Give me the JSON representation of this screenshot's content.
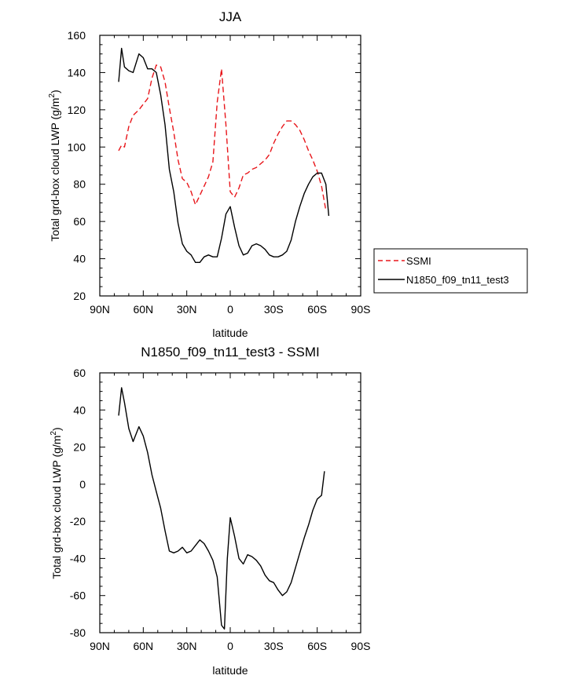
{
  "chart_data": [
    {
      "type": "line",
      "title": "JJA",
      "xlabel": "latitude",
      "ylabel": "Total grd-box cloud LWP (g/m",
      "ylabel_sup": "2",
      "ylabel_close": ")",
      "xlim": [
        90,
        -90
      ],
      "ylim": [
        20,
        160
      ],
      "xticks": [
        {
          "value": 90,
          "label": "90N"
        },
        {
          "value": 60,
          "label": "60N"
        },
        {
          "value": 30,
          "label": "30N"
        },
        {
          "value": 0,
          "label": "0"
        },
        {
          "value": -30,
          "label": "30S"
        },
        {
          "value": -60,
          "label": "60S"
        },
        {
          "value": -90,
          "label": "90S"
        }
      ],
      "yticks": [
        {
          "value": 20,
          "label": "20"
        },
        {
          "value": 40,
          "label": "40"
        },
        {
          "value": 60,
          "label": "60"
        },
        {
          "value": 80,
          "label": "80"
        },
        {
          "value": 100,
          "label": "100"
        },
        {
          "value": 120,
          "label": "120"
        },
        {
          "value": 140,
          "label": "140"
        },
        {
          "value": 160,
          "label": "160"
        }
      ],
      "legend": [
        {
          "name": "SSMI",
          "color": "#e8161b",
          "dash": true
        },
        {
          "name": "N1850_f09_tn11_test3",
          "color": "#000000",
          "dash": false
        }
      ],
      "series": [
        {
          "name": "SSMI",
          "color": "#e8161b",
          "dash": true,
          "x": [
            77,
            75,
            73,
            70,
            67,
            63,
            60,
            57,
            54,
            51,
            48,
            45,
            42,
            39,
            36,
            33,
            30,
            27,
            24,
            21,
            18,
            15,
            12,
            9,
            6,
            3,
            0,
            -3,
            -6,
            -9,
            -12,
            -15,
            -18,
            -21,
            -24,
            -27,
            -30,
            -33,
            -36,
            -39,
            -42,
            -45,
            -48,
            -51,
            -54,
            -57,
            -60,
            -63,
            -66
          ],
          "y": [
            98,
            101,
            100,
            111,
            117,
            120,
            123,
            126,
            137,
            144,
            143,
            135,
            121,
            108,
            93,
            83,
            81,
            76,
            69,
            74,
            79,
            84,
            92,
            124,
            142,
            112,
            76,
            73,
            78,
            85,
            86,
            88,
            89,
            91,
            93,
            96,
            102,
            107,
            111,
            114,
            114,
            112,
            109,
            104,
            98,
            93,
            87,
            79,
            66
          ]
        },
        {
          "name": "N1850_f09_tn11_test3",
          "color": "#000000",
          "dash": false,
          "x": [
            77,
            75,
            73,
            70,
            67,
            63,
            60,
            57,
            54,
            51,
            48,
            45,
            42,
            39,
            36,
            33,
            30,
            27,
            24,
            21,
            18,
            15,
            12,
            9,
            6,
            3,
            0,
            -3,
            -6,
            -9,
            -12,
            -15,
            -18,
            -21,
            -24,
            -27,
            -30,
            -33,
            -36,
            -39,
            -42,
            -45,
            -48,
            -51,
            -54,
            -57,
            -60,
            -63,
            -66,
            -68
          ],
          "y": [
            135,
            153,
            143,
            141,
            140,
            150,
            148,
            142,
            142,
            140,
            128,
            112,
            88,
            76,
            59,
            48,
            44,
            42,
            38,
            38,
            41,
            42,
            41,
            41,
            51,
            64,
            68,
            57,
            47,
            42,
            43,
            47,
            48,
            47,
            45,
            42,
            41,
            41,
            42,
            44,
            50,
            60,
            68,
            75,
            80,
            84,
            86,
            86,
            80,
            63
          ]
        }
      ]
    },
    {
      "type": "line",
      "title": "N1850_f09_tn11_test3 - SSMI",
      "xlabel": "latitude",
      "ylabel": "Total grd-box cloud LWP (g/m",
      "ylabel_sup": "2",
      "ylabel_close": ")",
      "xlim": [
        90,
        -90
      ],
      "ylim": [
        -80,
        60
      ],
      "xticks": [
        {
          "value": 90,
          "label": "90N"
        },
        {
          "value": 60,
          "label": "60N"
        },
        {
          "value": 30,
          "label": "30N"
        },
        {
          "value": 0,
          "label": "0"
        },
        {
          "value": -30,
          "label": "30S"
        },
        {
          "value": -60,
          "label": "60S"
        },
        {
          "value": -90,
          "label": "90S"
        }
      ],
      "yticks": [
        {
          "value": -80,
          "label": "-80"
        },
        {
          "value": -60,
          "label": "-60"
        },
        {
          "value": -40,
          "label": "-40"
        },
        {
          "value": -20,
          "label": "-20"
        },
        {
          "value": 0,
          "label": "0"
        },
        {
          "value": 20,
          "label": "20"
        },
        {
          "value": 40,
          "label": "40"
        },
        {
          "value": 60,
          "label": "60"
        }
      ],
      "series": [
        {
          "name": "N1850_f09_tn11_test3 - SSMI",
          "color": "#000000",
          "dash": false,
          "x": [
            77,
            75,
            73,
            70,
            67,
            63,
            60,
            57,
            54,
            51,
            48,
            45,
            42,
            39,
            36,
            33,
            30,
            27,
            24,
            21,
            18,
            15,
            12,
            9,
            6,
            4,
            2,
            0,
            -3,
            -6,
            -9,
            -12,
            -15,
            -18,
            -21,
            -24,
            -27,
            -30,
            -33,
            -36,
            -39,
            -42,
            -45,
            -48,
            -51,
            -54,
            -57,
            -60,
            -63,
            -65
          ],
          "y": [
            37,
            52,
            44,
            30,
            23,
            31,
            26,
            17,
            5,
            -4,
            -13,
            -25,
            -36,
            -37,
            -36,
            -34,
            -37,
            -36,
            -33,
            -30,
            -32,
            -36,
            -41,
            -50,
            -76,
            -78,
            -40,
            -18,
            -28,
            -40,
            -43,
            -38,
            -39,
            -41,
            -44,
            -49,
            -52,
            -53,
            -57,
            -60,
            -58,
            -53,
            -45,
            -37,
            -29,
            -22,
            -14,
            -8,
            -6,
            7
          ]
        }
      ]
    }
  ]
}
